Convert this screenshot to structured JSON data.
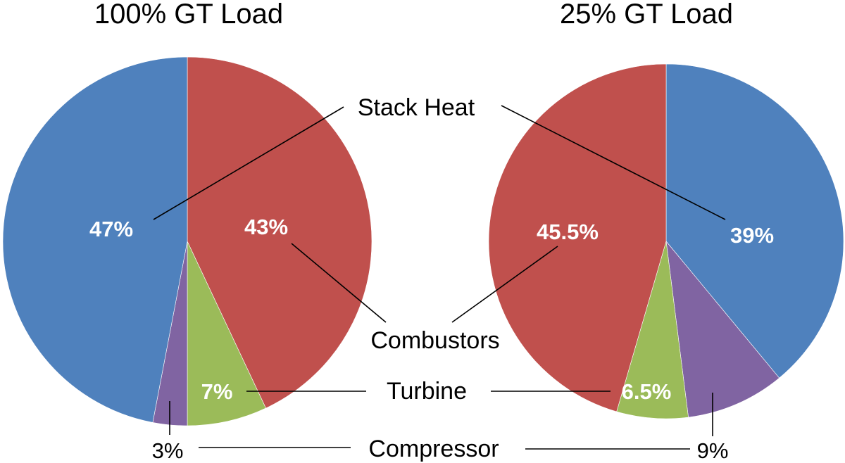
{
  "chart_data": [
    {
      "type": "pie",
      "title": "100% GT Load",
      "slices": [
        {
          "label": "Combustors",
          "value": 43,
          "value_label": "43%",
          "color": "#c0504d"
        },
        {
          "label": "Turbine",
          "value": 7,
          "value_label": "7%",
          "color": "#9bbb59"
        },
        {
          "label": "Compressor",
          "value": 3,
          "value_label": "3%",
          "color": "#8064a2"
        },
        {
          "label": "Stack Heat",
          "value": 47,
          "value_label": "47%",
          "color": "#4f81bd"
        }
      ]
    },
    {
      "type": "pie",
      "title": "25% GT Load",
      "slices": [
        {
          "label": "Stack Heat",
          "value": 39,
          "value_label": "39%",
          "color": "#4f81bd"
        },
        {
          "label": "Compressor",
          "value": 9,
          "value_label": "9%",
          "color": "#8064a2"
        },
        {
          "label": "Turbine",
          "value": 6.5,
          "value_label": "6.5%",
          "color": "#9bbb59"
        },
        {
          "label": "Combustors",
          "value": 45.5,
          "value_label": "45.5%",
          "color": "#c0504d"
        }
      ]
    }
  ],
  "shared_labels": {
    "stack_heat": "Stack Heat",
    "combustors": "Combustors",
    "turbine": "Turbine",
    "compressor": "Compressor"
  }
}
